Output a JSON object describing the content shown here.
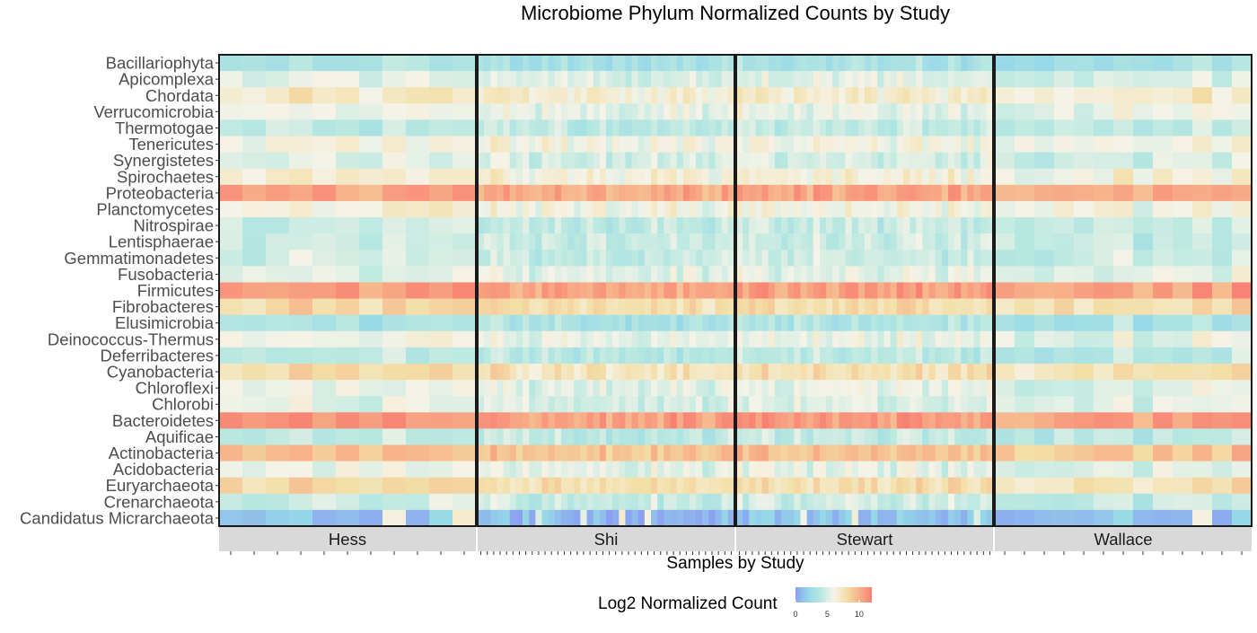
{
  "chart_data": {
    "type": "heatmap",
    "title": "Microbiome Phylum Normalized Counts by Study",
    "xlabel": "Samples by Study",
    "ylabel": "",
    "legend": {
      "title": "Log2 Normalized Count",
      "ticks": [
        0,
        5,
        10
      ],
      "range": [
        0,
        12
      ],
      "placement": "bottom",
      "colors": [
        "#8aa0f0",
        "#96d8e8",
        "#b8e8e0",
        "#f5f3e8",
        "#f3dfa8",
        "#f7b28a",
        "#f88072"
      ]
    },
    "grid": false,
    "rows": [
      "Bacillariophyta",
      "Apicomplexa",
      "Chordata",
      "Verrucomicrobia",
      "Thermotogae",
      "Tenericutes",
      "Synergistetes",
      "Spirochaetes",
      "Proteobacteria",
      "Planctomycetes",
      "Nitrospirae",
      "Lentisphaerae",
      "Gemmatimonadetes",
      "Fusobacteria",
      "Firmicutes",
      "Fibrobacteres",
      "Elusimicrobia",
      "Deinococcus-Thermus",
      "Deferribacteres",
      "Cyanobacteria",
      "Chloroflexi",
      "Chlorobi",
      "Bacteroidetes",
      "Aquificae",
      "Actinobacteria",
      "Acidobacteria",
      "Euryarchaeota",
      "Crenarchaeota",
      "Candidatus Micrarchaeota"
    ],
    "row_means": [
      3.2,
      5.2,
      6.8,
      5.6,
      4.2,
      6.0,
      5.0,
      6.4,
      10.4,
      6.2,
      4.4,
      4.6,
      4.6,
      5.4,
      10.6,
      8.0,
      3.4,
      5.6,
      4.0,
      7.6,
      5.4,
      5.2,
      10.8,
      4.2,
      9.2,
      5.4,
      7.8,
      4.6,
      1.0
    ],
    "facets": [
      {
        "study": "Hess",
        "samples": 11
      },
      {
        "study": "Shi",
        "samples": 40
      },
      {
        "study": "Stewart",
        "samples": 40
      },
      {
        "study": "Wallace",
        "samples": 13
      }
    ]
  }
}
